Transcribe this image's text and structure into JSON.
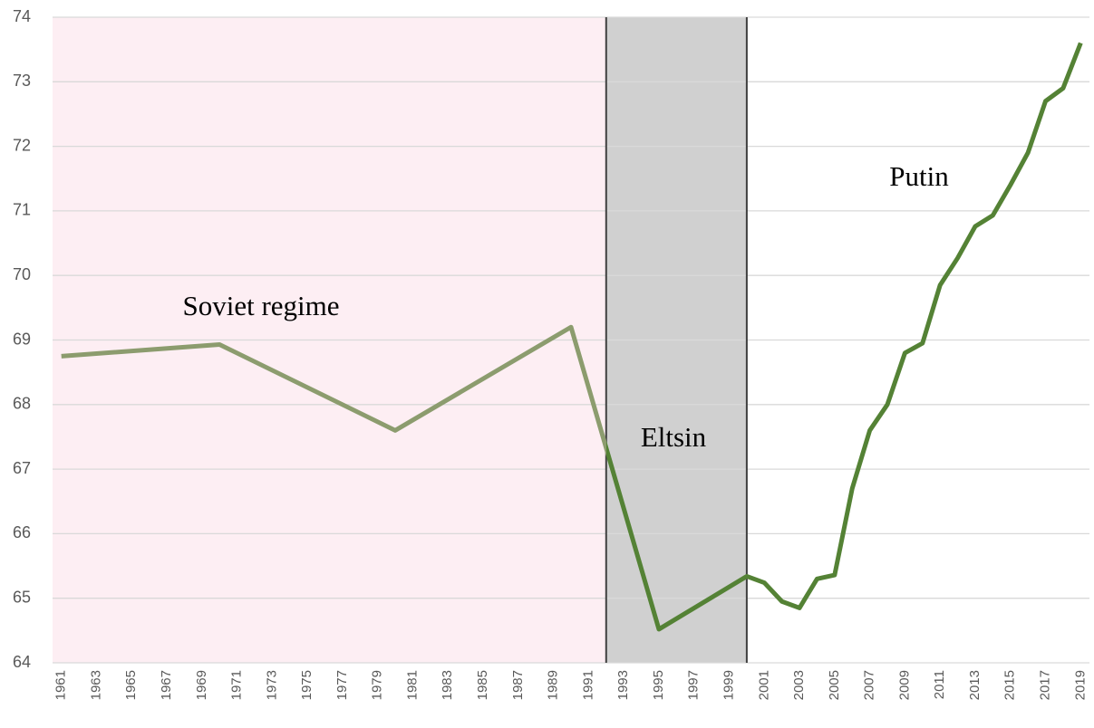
{
  "chart_data": {
    "type": "line",
    "x": [
      1961,
      1970,
      1980,
      1990,
      1995,
      2000,
      2001,
      2002,
      2003,
      2004,
      2005,
      2006,
      2007,
      2008,
      2009,
      2010,
      2011,
      2012,
      2013,
      2014,
      2015,
      2016,
      2017,
      2018,
      2019
    ],
    "series": [
      {
        "color": "#548235",
        "values": [
          68.75,
          68.93,
          67.6,
          69.2,
          64.52,
          65.34,
          65.24,
          64.95,
          64.85,
          65.3,
          65.36,
          66.7,
          67.6,
          68.0,
          68.8,
          68.95,
          69.85,
          70.27,
          70.76,
          70.93,
          71.4,
          71.9,
          72.7,
          72.9,
          73.6
        ]
      }
    ],
    "regions": [
      {
        "label": "Soviet regime",
        "start": 1960.5,
        "end": 1992,
        "color": "#fdeef3",
        "line_color": "#8c9c6e"
      },
      {
        "label": "Eltsin",
        "start": 1992,
        "end": 2000,
        "color": "#d0d0d0",
        "border": "#404040"
      },
      {
        "label": "Putin",
        "start": 2000,
        "end": 2019.5,
        "color": "#ffffff"
      }
    ],
    "xlim": [
      1960.5,
      2019.5
    ],
    "xticks": [
      1961,
      1963,
      1965,
      1967,
      1969,
      1971,
      1973,
      1975,
      1977,
      1979,
      1981,
      1983,
      1985,
      1987,
      1989,
      1991,
      1993,
      1995,
      1997,
      1999,
      2001,
      2003,
      2005,
      2007,
      2009,
      2011,
      2013,
      2015,
      2017,
      2019
    ],
    "ylim": [
      64,
      74
    ],
    "yticks": [
      64,
      65,
      66,
      67,
      68,
      69,
      70,
      71,
      72,
      73,
      74
    ],
    "grid": true
  }
}
